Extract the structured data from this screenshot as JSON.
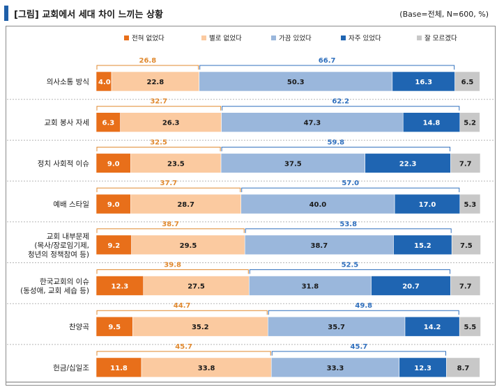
{
  "header": {
    "title": "[그림] 교회에서 세대 차이 느끼는 상황",
    "base": "(Base=전체, N=600, %)"
  },
  "chart_data": {
    "type": "bar",
    "orientation": "horizontal-stacked-100",
    "unit": "%",
    "categories": [
      [
        "의사소통 방식"
      ],
      [
        "교회 봉사 자세"
      ],
      [
        "정치 사회적 이슈"
      ],
      [
        "예배 스타일"
      ],
      [
        "교회 내부문제",
        "(목사/장로임기제,",
        "청년의 정책참여 등)"
      ],
      [
        "한국교회의 이슈",
        "(동성애, 교회 세습 등)"
      ],
      [
        "찬양곡"
      ],
      [
        "헌금/십일조"
      ]
    ],
    "series": [
      {
        "name": "전혀 없었다",
        "color": "#e86f1a",
        "label_color": "#ffffff",
        "values": [
          4.0,
          6.3,
          9.0,
          9.0,
          9.2,
          12.3,
          9.5,
          11.8
        ]
      },
      {
        "name": "별로 없었다",
        "color": "#fbcaa0",
        "label_color": "#1a1a1a",
        "values": [
          22.8,
          26.3,
          23.5,
          28.7,
          29.5,
          27.5,
          35.2,
          33.8
        ]
      },
      {
        "name": "가끔 있었다",
        "color": "#9ab7dc",
        "label_color": "#1a1a1a",
        "values": [
          50.3,
          47.3,
          37.5,
          40.0,
          38.7,
          31.8,
          35.7,
          33.3
        ]
      },
      {
        "name": "자주 있었다",
        "color": "#1f65b2",
        "label_color": "#ffffff",
        "values": [
          16.3,
          14.8,
          22.3,
          17.0,
          15.2,
          20.7,
          14.2,
          12.3
        ]
      },
      {
        "name": "잘 모르겠다",
        "color": "#c8c8c8",
        "label_color": "#1a1a1a",
        "values": [
          6.5,
          5.2,
          7.7,
          5.3,
          7.5,
          7.7,
          5.5,
          8.7
        ]
      }
    ],
    "net_negative": {
      "label_color": "#e0892f",
      "values": [
        26.8,
        32.7,
        32.5,
        37.7,
        38.7,
        39.8,
        44.7,
        45.7
      ]
    },
    "net_positive": {
      "label_color": "#2f6fbd",
      "values": [
        66.7,
        62.2,
        59.8,
        57.0,
        53.8,
        52.5,
        49.8,
        45.7
      ]
    },
    "legend_position": "top",
    "xlim": [
      0,
      100
    ]
  }
}
